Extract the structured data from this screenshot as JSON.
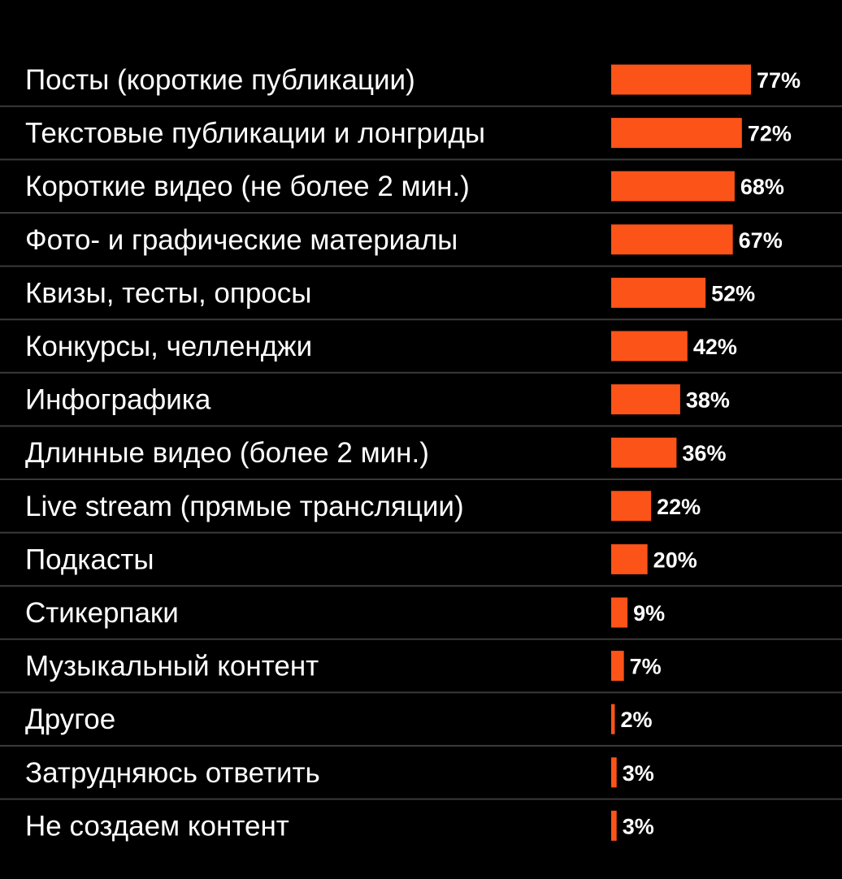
{
  "chart_data": {
    "type": "bar",
    "orientation": "horizontal",
    "categories": [
      "Посты (короткие публикации)",
      "Текстовые публикации и лонгриды",
      "Короткие видео (не более 2 мин.)",
      "Фото- и графические материалы",
      "Квизы, тесты, опросы",
      "Конкурсы, челленджи",
      "Инфографика",
      "Длинные видео (более 2 мин.)",
      "Live stream (прямые трансляции)",
      "Подкасты",
      "Стикерпаки",
      "Музыкальный контент",
      "Другое",
      "Затрудняюсь ответить",
      "Не создаем контент"
    ],
    "values": [
      77,
      72,
      68,
      67,
      52,
      42,
      38,
      36,
      22,
      20,
      9,
      7,
      2,
      3,
      3
    ],
    "value_labels": [
      "77%",
      "72%",
      "68%",
      "67%",
      "52%",
      "42%",
      "38%",
      "36%",
      "22%",
      "20%",
      "9%",
      "7%",
      "2%",
      "3%",
      "3%"
    ],
    "unit": "%",
    "xlim": [
      0,
      100
    ],
    "grid": false,
    "legend": "none",
    "colors": {
      "background": "#000000",
      "bar": "#fc5318",
      "text": "#ffffff",
      "divider": "#3a3a3a"
    }
  }
}
